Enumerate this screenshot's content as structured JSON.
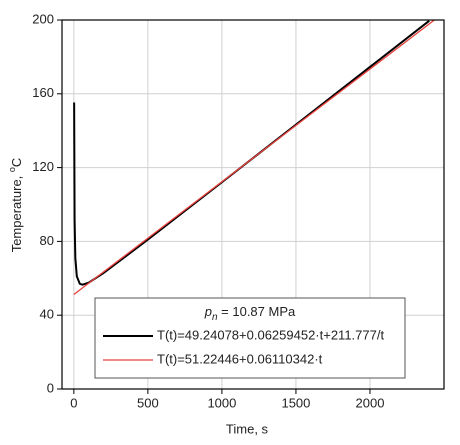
{
  "chart_data": {
    "type": "line",
    "xlabel": "Time, s",
    "ylabel": {
      "text": "Temperature, ",
      "superscript": "o",
      "unit": "C"
    },
    "legend_title": {
      "symbol": "p",
      "subscript": "n",
      "text": " = 10.87 MPa"
    },
    "xlim": [
      -80,
      2500
    ],
    "xticks": [
      0,
      500,
      1000,
      1500,
      2000
    ],
    "ylim": [
      0,
      200
    ],
    "yticks": [
      0,
      40,
      80,
      120,
      160,
      200
    ],
    "grid": true,
    "legend": "lower right",
    "series": [
      {
        "name": "T(t)=49.24078+0.06259452·t+211.777/t",
        "color": "#000000",
        "x": [
          2,
          5,
          10,
          20,
          40,
          58,
          100,
          200,
          500,
          1000,
          1500,
          2000,
          2400
        ],
        "values": [
          155.26,
          91.91,
          71.05,
          61.08,
          57.04,
          56.52,
          57.62,
          62.82,
          80.96,
          112.05,
          143.27,
          174.54,
          199.56
        ]
      },
      {
        "name": "T(t)=51.22446+0.06110342·t",
        "color": "#e8413c",
        "x": [
          0,
          2440
        ],
        "values": [
          51.22,
          200.31
        ]
      }
    ]
  }
}
